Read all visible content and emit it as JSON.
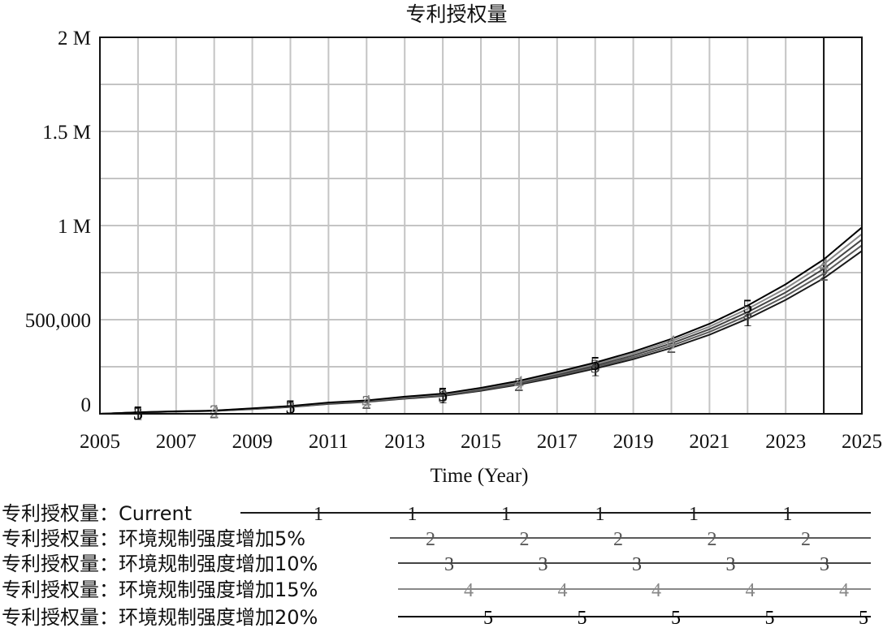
{
  "chart_data": {
    "type": "line",
    "title": "专利授权量",
    "xlabel": "Time (Year)",
    "ylabel": "",
    "xlim": [
      2005,
      2025
    ],
    "ylim": [
      0,
      2000000
    ],
    "grid": true,
    "x_ticks": [
      2005,
      2007,
      2009,
      2011,
      2013,
      2015,
      2017,
      2019,
      2021,
      2023,
      2025
    ],
    "x_tick_labels": [
      "2005",
      "2007",
      "2009",
      "2011",
      "2013",
      "2015",
      "2017",
      "2019",
      "2021",
      "2023",
      "2025"
    ],
    "y_ticks": [
      0,
      500000,
      1000000,
      1500000,
      2000000
    ],
    "y_tick_labels": [
      "0",
      "500,000",
      "1 M",
      "1.5 M",
      "2 M"
    ],
    "vertical_marker_x": 2024,
    "x": [
      2005,
      2006,
      2007,
      2008,
      2009,
      2010,
      2011,
      2012,
      2013,
      2014,
      2015,
      2016,
      2017,
      2018,
      2019,
      2020,
      2021,
      2022,
      2023,
      2024,
      2025
    ],
    "series": [
      {
        "name": "专利授权量：Current",
        "marker": "1",
        "color": "#1a1a1a",
        "values": [
          0,
          7000,
          12000,
          15000,
          25000,
          36000,
          52000,
          63000,
          80000,
          95000,
          122000,
          155000,
          195000,
          240000,
          290000,
          350000,
          420000,
          505000,
          605000,
          720000,
          865000
        ]
      },
      {
        "name": "专利授权量：环境规制强度增加5%",
        "marker": "2",
        "color": "#5a5a5a",
        "values": [
          0,
          7000,
          12000,
          15500,
          26000,
          37000,
          54000,
          65000,
          82000,
          98000,
          126000,
          160000,
          202000,
          248000,
          300000,
          362000,
          435000,
          522000,
          625000,
          745000,
          895000
        ]
      },
      {
        "name": "专利授权量：环境规制强度增加10%",
        "marker": "3",
        "color": "#444444",
        "values": [
          0,
          7500,
          12500,
          16000,
          27000,
          38500,
          56000,
          67000,
          85000,
          101000,
          130000,
          165000,
          208000,
          256000,
          310000,
          374000,
          449000,
          540000,
          645000,
          770000,
          925000
        ]
      },
      {
        "name": "专利授权量：环境规制强度增加15%",
        "marker": "4",
        "color": "#888888",
        "values": [
          0,
          7500,
          13000,
          16500,
          28000,
          40000,
          58000,
          69000,
          88000,
          104000,
          134000,
          170000,
          215000,
          264000,
          320000,
          386000,
          463000,
          557000,
          666000,
          795000,
          955000
        ]
      },
      {
        "name": "专利授权量：环境规制强度增加20%",
        "marker": "5",
        "color": "#000000",
        "values": [
          0,
          8000,
          13500,
          17000,
          29000,
          41500,
          60000,
          71000,
          91000,
          107000,
          138000,
          175000,
          222000,
          272000,
          330000,
          398000,
          478000,
          575000,
          688000,
          820000,
          990000
        ]
      }
    ]
  }
}
